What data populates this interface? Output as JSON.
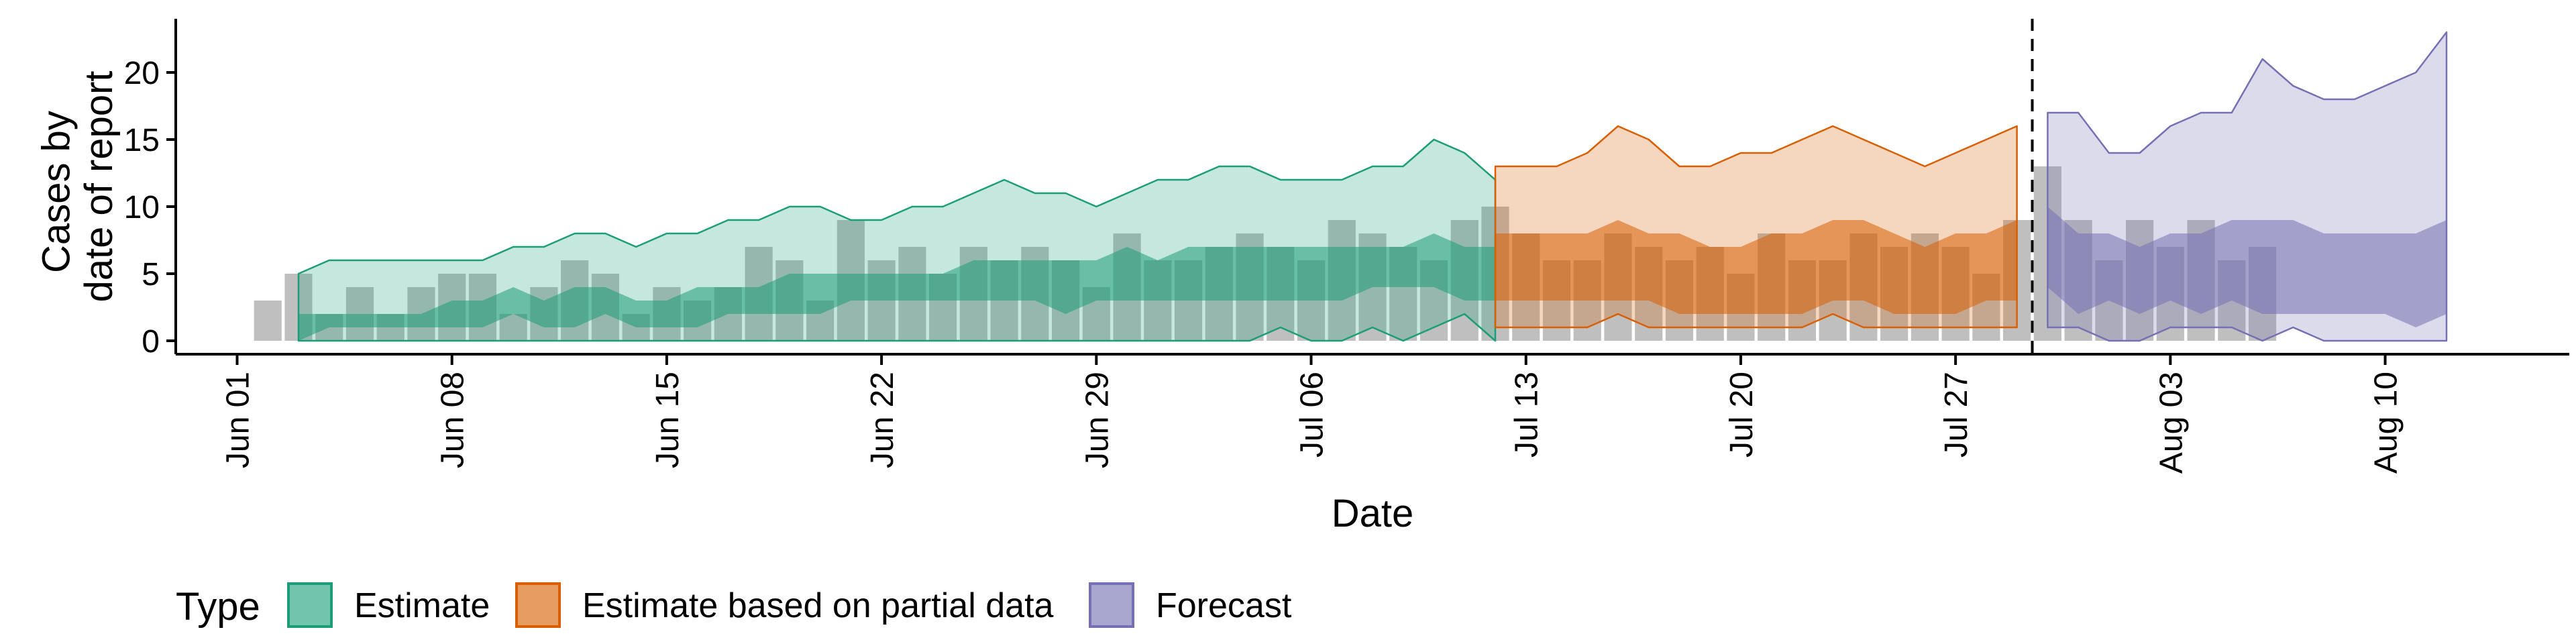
{
  "chart_data": {
    "type": "area",
    "title": "",
    "xlabel": "Date",
    "ylabel_lines": [
      "Cases by",
      "date of report"
    ],
    "ylim": [
      -1,
      24
    ],
    "y_ticks": [
      0,
      5,
      10,
      15,
      20
    ],
    "x_start": "2020-05-30",
    "x_end": "2020-08-16",
    "x_ticks": [
      {
        "date": "2020-06-01",
        "label": "Jun 01"
      },
      {
        "date": "2020-06-08",
        "label": "Jun 08"
      },
      {
        "date": "2020-06-15",
        "label": "Jun 15"
      },
      {
        "date": "2020-06-22",
        "label": "Jun 22"
      },
      {
        "date": "2020-06-29",
        "label": "Jun 29"
      },
      {
        "date": "2020-07-06",
        "label": "Jul 06"
      },
      {
        "date": "2020-07-13",
        "label": "Jul 13"
      },
      {
        "date": "2020-07-20",
        "label": "Jul 20"
      },
      {
        "date": "2020-07-27",
        "label": "Jul 27"
      },
      {
        "date": "2020-08-03",
        "label": "Aug 03"
      },
      {
        "date": "2020-08-10",
        "label": "Aug 10"
      }
    ],
    "forecast_date": "2020-07-30",
    "grid": false,
    "legend": {
      "position": "bottom",
      "title": "Type",
      "items": [
        {
          "label": "Estimate",
          "color": "#1b9e77"
        },
        {
          "label": "Estimate based on partial data",
          "color": "#d95f02"
        },
        {
          "label": "Forecast",
          "color": "#7570b3"
        }
      ]
    },
    "observed_cases": {
      "start_date": "2020-06-02",
      "color": "#a6a6a6",
      "values": [
        3,
        5,
        2,
        4,
        2,
        4,
        5,
        5,
        2,
        4,
        6,
        5,
        2,
        4,
        3,
        4,
        7,
        6,
        3,
        9,
        6,
        7,
        5,
        7,
        6,
        7,
        6,
        4,
        8,
        6,
        6,
        7,
        8,
        7,
        6,
        9,
        8,
        7,
        6,
        9,
        10,
        8,
        6,
        6,
        8,
        7,
        6,
        7,
        5,
        8,
        6,
        6,
        8,
        7,
        8,
        7,
        5,
        9,
        13,
        9,
        6,
        9,
        7,
        9,
        6,
        7
      ]
    },
    "series": [
      {
        "name": "Estimate",
        "color": "#1b9e77",
        "start_date": "2020-06-03",
        "upper90": [
          5,
          6,
          6,
          6,
          6,
          6,
          6,
          7,
          7,
          8,
          8,
          7,
          8,
          8,
          9,
          9,
          10,
          10,
          9,
          9,
          10,
          10,
          11,
          12,
          11,
          11,
          10,
          11,
          12,
          12,
          13,
          13,
          12,
          12,
          12,
          13,
          13,
          15,
          14,
          12
        ],
        "upper50": [
          2,
          2,
          2,
          2,
          2,
          3,
          3,
          4,
          3,
          4,
          4,
          3,
          3,
          4,
          4,
          4,
          5,
          5,
          5,
          5,
          5,
          5,
          6,
          6,
          6,
          6,
          6,
          7,
          6,
          7,
          7,
          7,
          7,
          7,
          7,
          7,
          7,
          8,
          7,
          7
        ],
        "lower50": [
          0,
          1,
          1,
          1,
          1,
          1,
          1,
          2,
          1,
          1,
          2,
          1,
          1,
          1,
          2,
          2,
          2,
          2,
          3,
          3,
          3,
          3,
          3,
          3,
          3,
          2,
          3,
          3,
          3,
          3,
          3,
          3,
          3,
          3,
          3,
          4,
          4,
          4,
          3,
          3
        ],
        "lower90": [
          0,
          0,
          0,
          0,
          0,
          0,
          0,
          0,
          0,
          0,
          0,
          0,
          0,
          0,
          0,
          0,
          0,
          0,
          0,
          0,
          0,
          0,
          0,
          0,
          0,
          0,
          0,
          0,
          0,
          0,
          0,
          0,
          1,
          0,
          0,
          1,
          0,
          1,
          2,
          0
        ]
      },
      {
        "name": "Estimate based on partial data",
        "color": "#d95f02",
        "start_date": "2020-07-12",
        "upper90": [
          13,
          13,
          13,
          14,
          16,
          15,
          13,
          13,
          14,
          14,
          15,
          16,
          15,
          14,
          13,
          14,
          15,
          16
        ],
        "upper50": [
          8,
          8,
          8,
          8,
          9,
          8,
          8,
          7,
          7,
          8,
          8,
          9,
          9,
          8,
          7,
          8,
          8,
          9
        ],
        "lower50": [
          3,
          3,
          3,
          3,
          3,
          3,
          2,
          2,
          2,
          2,
          2,
          3,
          3,
          2,
          2,
          2,
          3,
          3
        ],
        "lower90": [
          1,
          1,
          1,
          1,
          2,
          1,
          1,
          1,
          1,
          1,
          1,
          2,
          1,
          1,
          1,
          1,
          1,
          1
        ]
      },
      {
        "name": "Forecast",
        "color": "#7570b3",
        "start_date": "2020-07-30",
        "upper90": [
          17,
          17,
          14,
          14,
          16,
          17,
          17,
          21,
          19,
          18,
          18,
          19,
          20,
          23
        ],
        "upper50": [
          10,
          8,
          8,
          7,
          8,
          8,
          9,
          9,
          9,
          8,
          8,
          8,
          8,
          9
        ],
        "lower50": [
          4,
          2,
          3,
          2,
          3,
          2,
          3,
          2,
          2,
          2,
          2,
          2,
          1,
          2
        ],
        "lower90": [
          1,
          1,
          0,
          0,
          1,
          1,
          1,
          0,
          1,
          0,
          0,
          0,
          0,
          0
        ]
      }
    ]
  }
}
